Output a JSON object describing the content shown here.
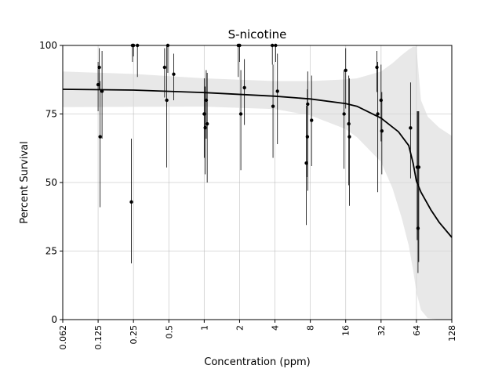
{
  "chart_data": {
    "type": "scatter",
    "title": "S-nicotine",
    "xlabel": "Concentration (ppm)",
    "ylabel": "Percent Survival",
    "x_scale": "log2",
    "xlim": [
      0.0625,
      128
    ],
    "ylim": [
      0,
      100
    ],
    "x_ticks": [
      0.0625,
      0.125,
      0.25,
      0.5,
      1,
      2,
      4,
      8,
      16,
      32,
      64,
      128
    ],
    "x_tick_labels": [
      "0.062",
      "0.125",
      "0.25",
      "0.5",
      "1",
      "2",
      "4",
      "8",
      "16",
      "32",
      "64",
      "128"
    ],
    "y_ticks": [
      0,
      25,
      50,
      75,
      100
    ],
    "y_tick_labels": [
      "0",
      "25",
      "50",
      "75",
      "100"
    ],
    "grid": true,
    "points": [
      {
        "x": 0.125,
        "y": 85.7,
        "lo": 76.0,
        "hi": 94.0
      },
      {
        "x": 0.128,
        "y": 92.0,
        "lo": 84.0,
        "hi": 99.0
      },
      {
        "x": 0.13,
        "y": 66.7,
        "lo": 41.0,
        "hi": 87.0
      },
      {
        "x": 0.135,
        "y": 83.3,
        "lo": 66.0,
        "hi": 98.0
      },
      {
        "x": 0.24,
        "y": 42.9,
        "lo": 20.5,
        "hi": 66.0
      },
      {
        "x": 0.245,
        "y": 100,
        "lo": 94.0,
        "hi": 100
      },
      {
        "x": 0.25,
        "y": 100,
        "lo": 96.0,
        "hi": 100
      },
      {
        "x": 0.27,
        "y": 100,
        "lo": 88.5,
        "hi": 100
      },
      {
        "x": 0.46,
        "y": 92.0,
        "lo": 81.0,
        "hi": 99.0
      },
      {
        "x": 0.48,
        "y": 80.0,
        "lo": 55.5,
        "hi": 100
      },
      {
        "x": 0.49,
        "y": 100,
        "lo": 90.0,
        "hi": 100
      },
      {
        "x": 0.55,
        "y": 89.5,
        "lo": 80.0,
        "hi": 97.0
      },
      {
        "x": 1.0,
        "y": 75.0,
        "lo": 59.0,
        "hi": 88.0
      },
      {
        "x": 1.02,
        "y": 70.0,
        "lo": 53.0,
        "hi": 85.0
      },
      {
        "x": 1.04,
        "y": 80.0,
        "lo": 66.0,
        "hi": 91.0
      },
      {
        "x": 1.06,
        "y": 71.4,
        "lo": 50.0,
        "hi": 90.0
      },
      {
        "x": 1.95,
        "y": 100,
        "lo": 88.5,
        "hi": 100
      },
      {
        "x": 2.0,
        "y": 100,
        "lo": 94.0,
        "hi": 100
      },
      {
        "x": 2.05,
        "y": 75.0,
        "lo": 54.5,
        "hi": 91.0
      },
      {
        "x": 2.2,
        "y": 84.6,
        "lo": 71.0,
        "hi": 95.0
      },
      {
        "x": 3.8,
        "y": 100,
        "lo": 93.0,
        "hi": 100
      },
      {
        "x": 3.85,
        "y": 77.8,
        "lo": 59.0,
        "hi": 93.0
      },
      {
        "x": 4.05,
        "y": 100,
        "lo": 94.0,
        "hi": 100
      },
      {
        "x": 4.2,
        "y": 83.3,
        "lo": 64.0,
        "hi": 97.0
      },
      {
        "x": 7.4,
        "y": 57.1,
        "lo": 34.5,
        "hi": 78.0
      },
      {
        "x": 7.6,
        "y": 78.6,
        "lo": 47.0,
        "hi": 90.5
      },
      {
        "x": 7.55,
        "y": 66.7,
        "lo": 52.0,
        "hi": 84.0
      },
      {
        "x": 8.2,
        "y": 72.7,
        "lo": 56.0,
        "hi": 89.0
      },
      {
        "x": 15.5,
        "y": 75.0,
        "lo": 55.0,
        "hi": 91.0
      },
      {
        "x": 16.0,
        "y": 90.9,
        "lo": 77.0,
        "hi": 99.0
      },
      {
        "x": 17.0,
        "y": 71.4,
        "lo": 49.0,
        "hi": 89.0
      },
      {
        "x": 17.2,
        "y": 66.7,
        "lo": 41.5,
        "hi": 88.0
      },
      {
        "x": 29.5,
        "y": 92.0,
        "lo": 83.0,
        "hi": 98.0
      },
      {
        "x": 30.0,
        "y": 75.0,
        "lo": 46.5,
        "hi": 94.0
      },
      {
        "x": 32.0,
        "y": 80.0,
        "lo": 65.0,
        "hi": 93.0
      },
      {
        "x": 32.5,
        "y": 68.8,
        "lo": 53.0,
        "hi": 83.0
      },
      {
        "x": 57.0,
        "y": 69.9,
        "lo": 51.5,
        "hi": 86.5
      },
      {
        "x": 65.0,
        "y": 55.6,
        "lo": 29.0,
        "hi": 76.0
      },
      {
        "x": 66.0,
        "y": 33.3,
        "lo": 17.0,
        "hi": 76.0
      },
      {
        "x": 67.0,
        "y": 55.6,
        "lo": 21.0,
        "hi": 76.0
      }
    ],
    "fit_curve": {
      "x": [
        0.0625,
        0.25,
        1,
        4,
        8,
        16,
        20,
        32,
        45,
        55,
        60,
        64,
        70,
        85,
        100,
        128
      ],
      "y": [
        84.0,
        83.7,
        82.8,
        81.5,
        80.5,
        78.8,
        77.8,
        73.5,
        68.5,
        63.5,
        57.0,
        50.5,
        46.5,
        40.0,
        35.5,
        30.0
      ]
    },
    "ci_band": {
      "x": [
        0.0625,
        0.25,
        1,
        4,
        8,
        16,
        20,
        32,
        40,
        48,
        55,
        60,
        64,
        70,
        80,
        100,
        128
      ],
      "lo": [
        77.5,
        77.6,
        77.7,
        76.8,
        74.5,
        69.5,
        66.5,
        57.5,
        48.0,
        37.0,
        27.0,
        18.0,
        10.0,
        3.5,
        0.5,
        0,
        0
      ],
      "hi": [
        90.5,
        89.6,
        88.0,
        87.0,
        87.0,
        87.6,
        88.0,
        90.5,
        93.5,
        96.5,
        98.5,
        99.5,
        99.5,
        80.0,
        74.0,
        70.0,
        67.0
      ]
    },
    "colors": {
      "points": "#000000",
      "fit_line": "#000000",
      "band": "#d9d9d9",
      "grid": "#b0b0b0"
    }
  }
}
